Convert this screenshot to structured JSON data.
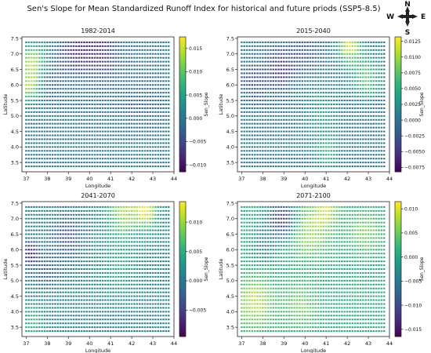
{
  "figure": {
    "title": "Sen's Slope for Mean Standardized Runoff Index for historical and future priods (SSP5-8.5)",
    "compass": {
      "n": "N",
      "s": "S",
      "e": "E",
      "w": "W"
    }
  },
  "chart_data": [
    {
      "type": "scatter",
      "title": "1982-2014",
      "xlabel": "Longitude",
      "ylabel": "Latitude",
      "xlim": [
        36.8,
        44.0
      ],
      "ylim": [
        3.2,
        7.55
      ],
      "x_ticks": [
        "37",
        "38",
        "39",
        "40",
        "41",
        "42",
        "43",
        "44"
      ],
      "y_ticks": [
        "3.5",
        "4.0",
        "4.5",
        "5.0",
        "5.5",
        "6.0",
        "6.5",
        "7.0",
        "7.5"
      ],
      "grid": {
        "lon_start": 37.0,
        "lon_end": 43.75,
        "lon_step": 0.125,
        "lat_start": 3.375,
        "lat_end": 7.375,
        "lat_step": 0.125
      },
      "colorbar": {
        "label": "Sen_Slope",
        "vmin": -0.0115,
        "vmax": 0.0175,
        "ticks": [
          "0.015",
          "0.010",
          "0.005",
          "0.000",
          "−0.005",
          "−0.010"
        ],
        "tick_values": [
          0.015,
          0.01,
          0.005,
          0.0,
          -0.005,
          -0.01
        ]
      },
      "background": 0.0005,
      "blobs": [
        {
          "lon": 37.3,
          "lat": 6.7,
          "r": 0.45,
          "v": 0.015
        },
        {
          "lon": 37.15,
          "lat": 5.9,
          "r": 0.35,
          "v": 0.012
        },
        {
          "lon": 40.4,
          "lat": 7.2,
          "r": 0.7,
          "v": -0.009
        },
        {
          "lon": 39.2,
          "lat": 7.1,
          "r": 0.5,
          "v": -0.006
        },
        {
          "lon": 38.2,
          "lat": 6.2,
          "r": 0.4,
          "v": -0.004
        },
        {
          "lon": 42.5,
          "lat": 5.4,
          "r": 0.8,
          "v": -0.002
        },
        {
          "lon": 42.2,
          "lat": 3.6,
          "r": 0.6,
          "v": 0.002
        }
      ]
    },
    {
      "type": "scatter",
      "title": "2015-2040",
      "xlabel": "Longitude",
      "ylabel": "Latitude",
      "xlim": [
        36.8,
        44.0
      ],
      "ylim": [
        3.2,
        7.55
      ],
      "x_ticks": [
        "37",
        "38",
        "39",
        "40",
        "41",
        "42",
        "43",
        "44"
      ],
      "y_ticks": [
        "3.5",
        "4.0",
        "4.5",
        "5.0",
        "5.5",
        "6.0",
        "6.5",
        "7.0",
        "7.5"
      ],
      "grid": {
        "lon_start": 37.0,
        "lon_end": 43.75,
        "lon_step": 0.125,
        "lat_start": 3.375,
        "lat_end": 7.375,
        "lat_step": 0.125
      },
      "colorbar": {
        "label": "Sen_Slope",
        "vmin": -0.0082,
        "vmax": 0.0132,
        "ticks": [
          "0.0125",
          "0.0100",
          "0.0075",
          "0.0050",
          "0.0025",
          "0.0000",
          "−0.0025",
          "−0.0050",
          "−0.0075"
        ],
        "tick_values": [
          0.0125,
          0.01,
          0.0075,
          0.005,
          0.0025,
          0.0,
          -0.0025,
          -0.005,
          -0.0075
        ]
      },
      "background": 0.0005,
      "blobs": [
        {
          "lon": 42.1,
          "lat": 7.3,
          "r": 0.4,
          "v": 0.013
        },
        {
          "lon": 42.9,
          "lat": 6.2,
          "r": 0.5,
          "v": 0.008
        },
        {
          "lon": 38.8,
          "lat": 6.5,
          "r": 0.45,
          "v": -0.006
        },
        {
          "lon": 37.6,
          "lat": 6.1,
          "r": 0.4,
          "v": -0.004
        },
        {
          "lon": 39.9,
          "lat": 7.0,
          "r": 0.5,
          "v": -0.003
        },
        {
          "lon": 41.0,
          "lat": 3.8,
          "r": 0.4,
          "v": 0.006
        },
        {
          "lon": 40.8,
          "lat": 5.2,
          "r": 0.6,
          "v": 0.004
        }
      ]
    },
    {
      "type": "scatter",
      "title": "2041-2070",
      "xlabel": "Longitude",
      "ylabel": "Latitude",
      "xlim": [
        36.8,
        44.0
      ],
      "ylim": [
        3.2,
        7.55
      ],
      "x_ticks": [
        "37",
        "38",
        "39",
        "40",
        "41",
        "42",
        "43",
        "44"
      ],
      "y_ticks": [
        "3.5",
        "4.0",
        "4.5",
        "5.0",
        "5.5",
        "6.0",
        "6.5",
        "7.0",
        "7.5"
      ],
      "grid": {
        "lon_start": 37.0,
        "lon_end": 43.75,
        "lon_step": 0.125,
        "lat_start": 3.375,
        "lat_end": 7.375,
        "lat_step": 0.125
      },
      "colorbar": {
        "label": "Sen_Slope",
        "vmin": -0.0095,
        "vmax": 0.0135,
        "ticks": [
          "0.010",
          "0.005",
          "0.000",
          "−0.005"
        ],
        "tick_values": [
          0.01,
          0.005,
          0.0,
          -0.005
        ]
      },
      "background": 0.001,
      "blobs": [
        {
          "lon": 41.6,
          "lat": 7.25,
          "r": 0.55,
          "v": 0.011
        },
        {
          "lon": 42.7,
          "lat": 7.3,
          "r": 0.4,
          "v": 0.013
        },
        {
          "lon": 37.2,
          "lat": 5.9,
          "r": 0.25,
          "v": -0.009
        },
        {
          "lon": 38.9,
          "lat": 6.4,
          "r": 0.5,
          "v": -0.005
        },
        {
          "lon": 37.9,
          "lat": 5.3,
          "r": 0.4,
          "v": -0.003
        },
        {
          "lon": 41.4,
          "lat": 5.4,
          "r": 0.6,
          "v": 0.005
        },
        {
          "lon": 37.3,
          "lat": 3.6,
          "r": 0.4,
          "v": 0.006
        }
      ]
    },
    {
      "type": "scatter",
      "title": "2071-2100",
      "xlabel": "Longitude",
      "ylabel": "Latitude",
      "xlim": [
        36.8,
        44.0
      ],
      "ylim": [
        3.2,
        7.55
      ],
      "x_ticks": [
        "37",
        "38",
        "39",
        "40",
        "41",
        "42",
        "43",
        "44"
      ],
      "y_ticks": [
        "3.5",
        "4.0",
        "4.5",
        "5.0",
        "5.5",
        "6.0",
        "6.5",
        "7.0",
        "7.5"
      ],
      "grid": {
        "lon_start": 37.0,
        "lon_end": 43.75,
        "lon_step": 0.125,
        "lat_start": 3.375,
        "lat_end": 7.375,
        "lat_step": 0.125
      },
      "colorbar": {
        "label": "Sen_Slope",
        "vmin": -0.0165,
        "vmax": 0.0115,
        "ticks": [
          "0.010",
          "0.005",
          "0.000",
          "−0.005",
          "−0.010",
          "−0.015"
        ],
        "tick_values": [
          0.01,
          0.005,
          0.0,
          -0.005,
          -0.01,
          -0.015
        ]
      },
      "background": 0.001,
      "blobs": [
        {
          "lon": 38.9,
          "lat": 7.0,
          "r": 0.45,
          "v": -0.014
        },
        {
          "lon": 40.2,
          "lat": 6.6,
          "r": 0.6,
          "v": 0.008
        },
        {
          "lon": 41.0,
          "lat": 7.3,
          "r": 0.4,
          "v": 0.009
        },
        {
          "lon": 37.6,
          "lat": 4.3,
          "r": 0.6,
          "v": 0.009
        },
        {
          "lon": 39.8,
          "lat": 4.2,
          "r": 0.5,
          "v": 0.006
        },
        {
          "lon": 42.8,
          "lat": 6.6,
          "r": 0.5,
          "v": 0.006
        },
        {
          "lon": 38.0,
          "lat": 6.2,
          "r": 0.4,
          "v": -0.006
        }
      ]
    }
  ]
}
